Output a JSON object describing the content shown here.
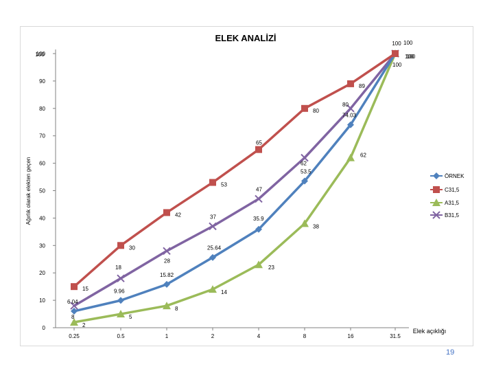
{
  "chart_data": {
    "type": "line",
    "title": "ELEK ANALİZİ",
    "xlabel": "Elek açıklığı",
    "ylabel": "Ağırlık olarak elekten geçen",
    "categories": [
      "0.25",
      "0.5",
      "1",
      "2",
      "4",
      "8",
      "16",
      "31.5"
    ],
    "ylim": [
      0,
      100
    ],
    "yticks": [
      "0",
      "10",
      "20",
      "30",
      "40",
      "50",
      "60",
      "70",
      "80",
      "90",
      "100"
    ],
    "grid": false,
    "legend_position": "right",
    "series": [
      {
        "name": "ÖRNEK",
        "color": "#4f81bd",
        "marker": "diamond",
        "values": [
          6.04,
          9.96,
          15.82,
          25.64,
          35.9,
          53.5,
          74.03,
          100
        ],
        "labels": [
          "6.04",
          "9.96",
          "15.82",
          "25.64",
          "35.9",
          "53.5",
          "74.03",
          "100"
        ]
      },
      {
        "name": "C31,5",
        "color": "#c0504d",
        "marker": "square",
        "values": [
          15,
          30,
          42,
          53,
          65,
          80,
          89,
          100
        ],
        "labels": [
          "15",
          "30",
          "42",
          "53",
          "65",
          "80",
          "89",
          "100"
        ]
      },
      {
        "name": "A31,5",
        "color": "#9bbb59",
        "marker": "triangle",
        "values": [
          2,
          5,
          8,
          14,
          23,
          38,
          62,
          100
        ],
        "labels": [
          "2",
          "5",
          "8",
          "14",
          "23",
          "38",
          "62",
          "100"
        ]
      },
      {
        "name": "B31,5",
        "color": "#8064a2",
        "marker": "x",
        "values": [
          8,
          18,
          28,
          37,
          47,
          62,
          80,
          100
        ],
        "labels": [
          "8",
          "18",
          "28",
          "37",
          "47",
          "62",
          "80",
          "100"
        ]
      }
    ]
  },
  "page": {
    "number": "19"
  }
}
